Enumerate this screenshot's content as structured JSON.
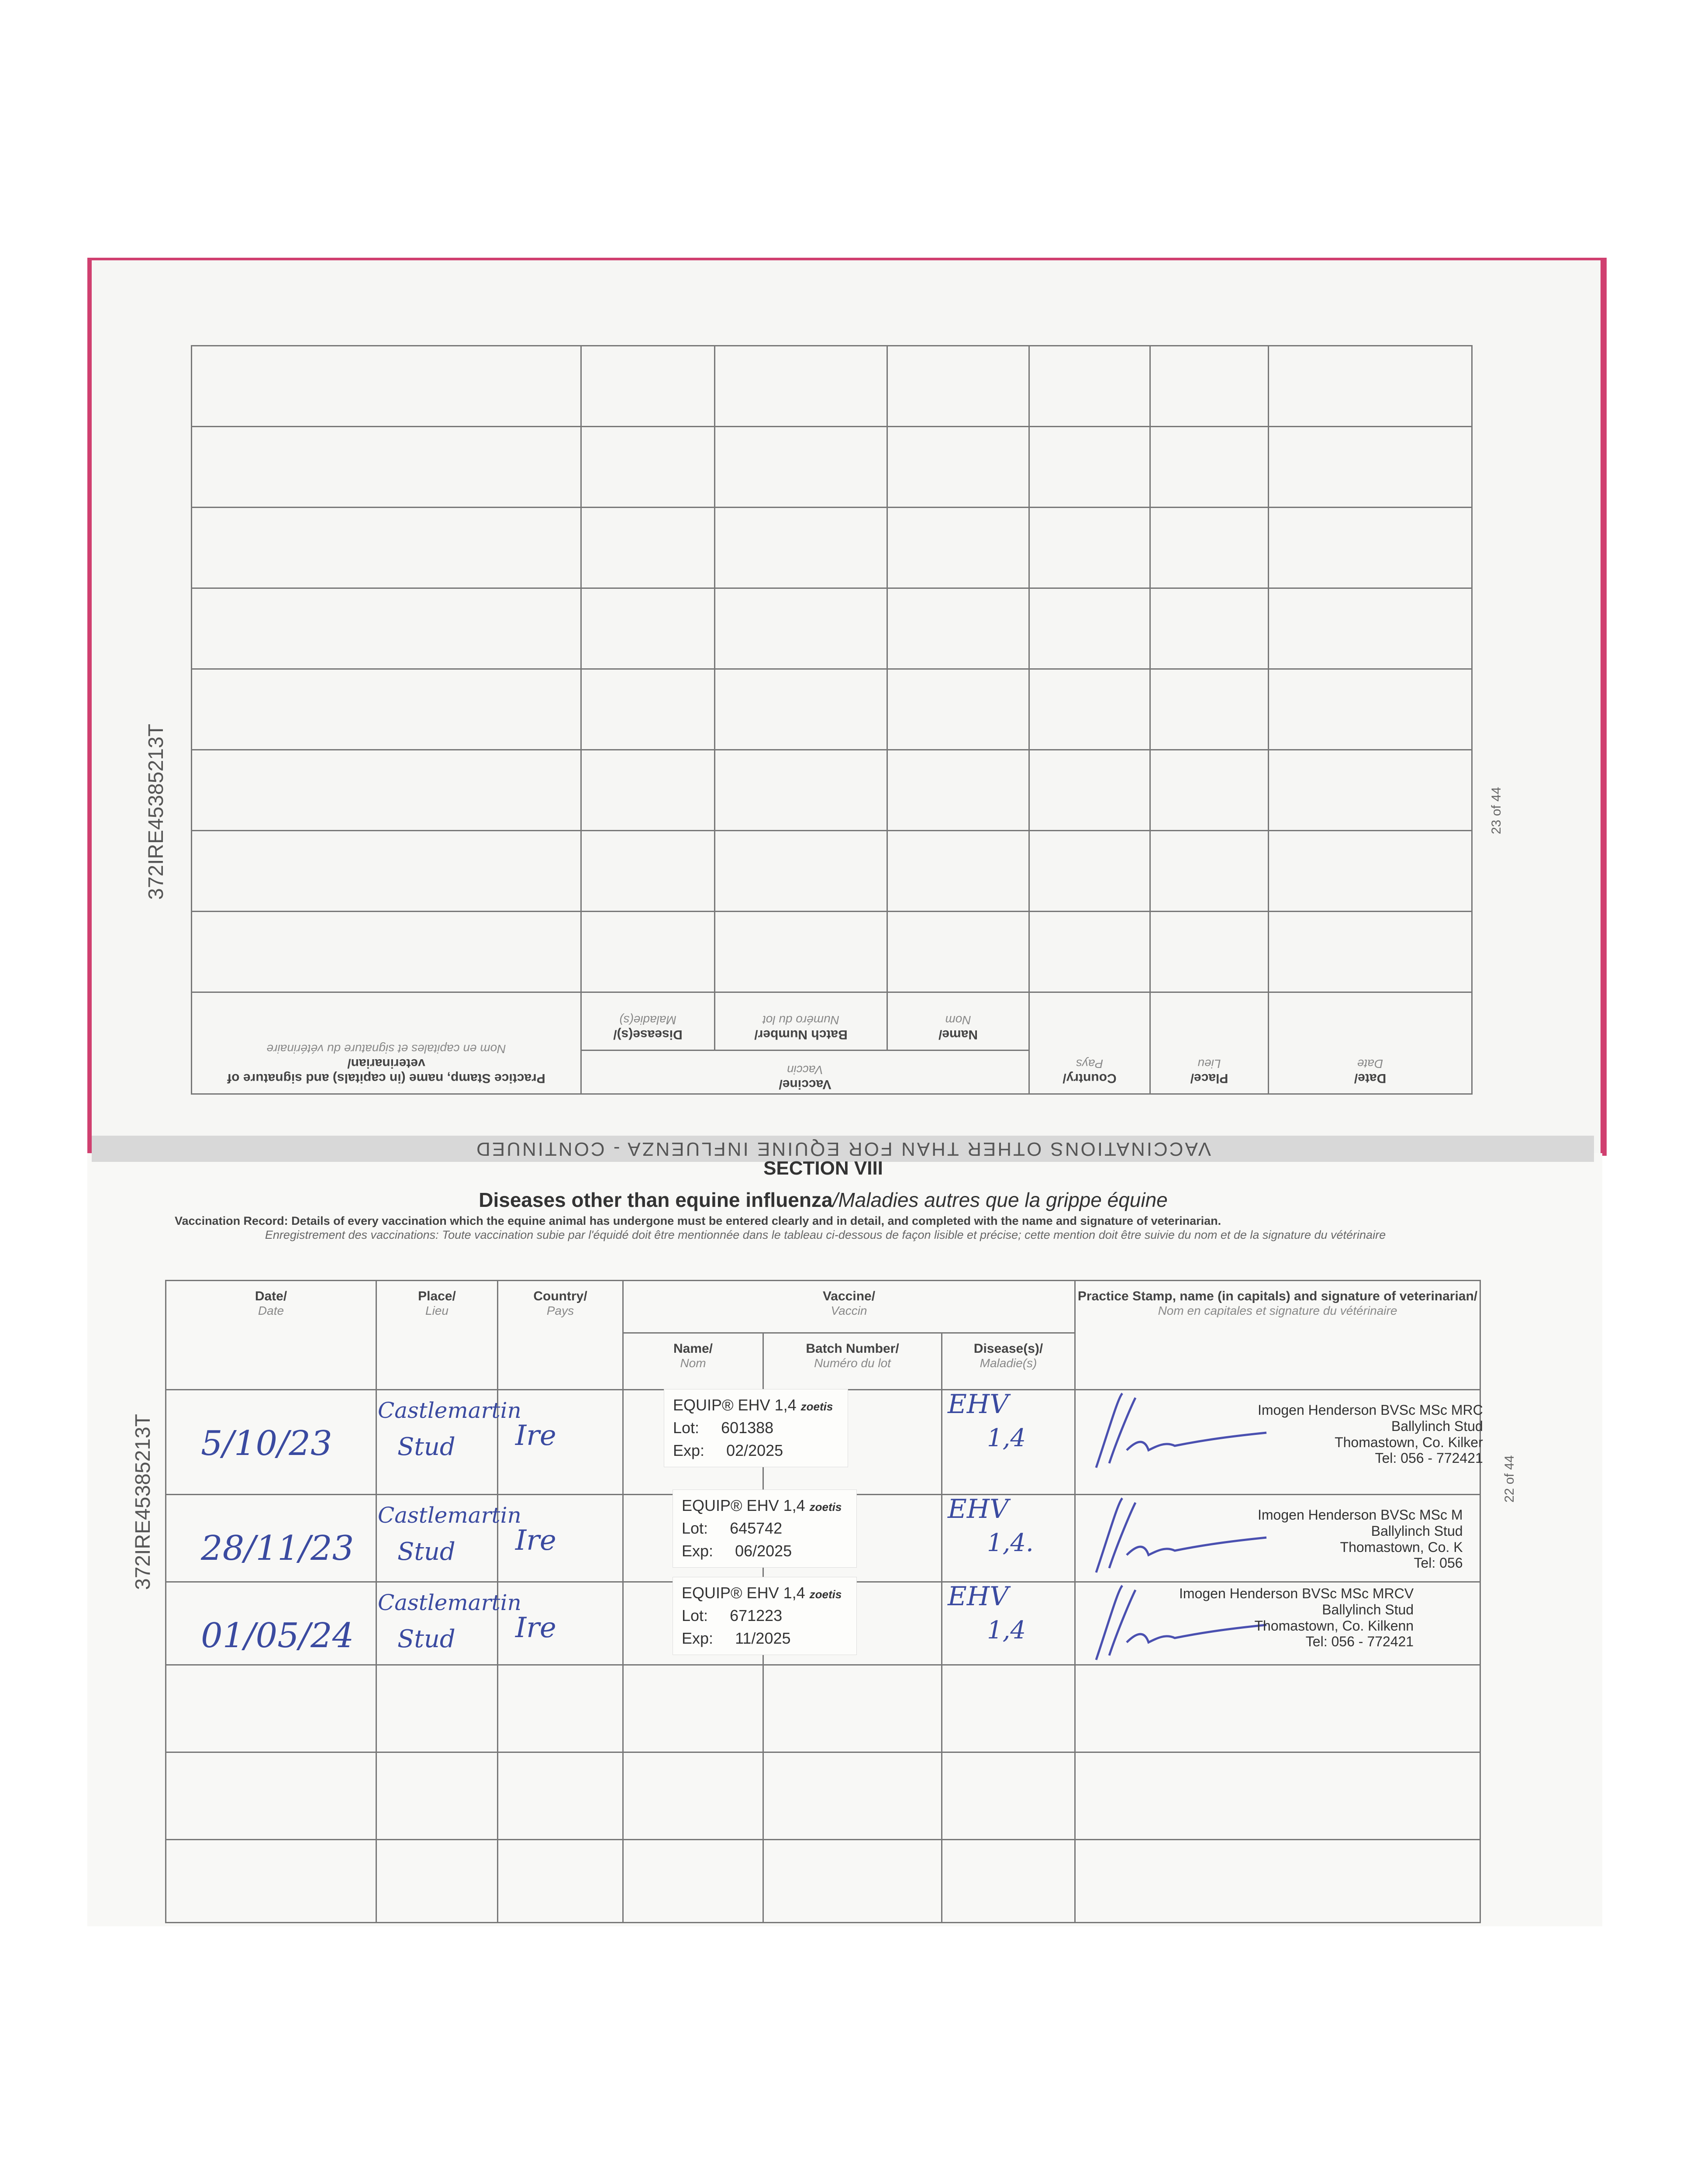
{
  "passport_id": "372IRE45385213T",
  "upper_page": {
    "page_number": "23 of 44",
    "header_band": "VACCINATIONS OTHER THAN FOR EQUINE INFLUENZA - CONTINUED",
    "columns": {
      "date": "Date/",
      "date_fr": "Date",
      "place": "Place/",
      "place_fr": "Lieu",
      "country": "Country/",
      "country_fr": "Pays",
      "vaccine": "Vaccine/",
      "vaccine_fr": "Vaccin",
      "name": "Name/",
      "name_fr": "Nom",
      "batch": "Batch Number/",
      "batch_fr": "Numéro du lot",
      "disease": "Disease(s)/",
      "disease_fr": "Maladie(s)",
      "practice": "Practice Stamp, name (in capitals) and signature of veterinarian/",
      "practice_fr": "Nom en capitales et signature du vétérinaire"
    }
  },
  "lower_page": {
    "page_number": "22 of 44",
    "section": "SECTION VIII",
    "title": "Diseases other than equine influenza",
    "title_fr": "/Maladies autres que la grippe équine",
    "instructions": "Vaccination Record: Details of every vaccination which the equine animal has undergone must be entered clearly and in detail, and completed with the name and signature of veterinarian.",
    "instructions_fr": "Enregistrement des vaccinations: Toute vaccination subie par l'équidé doit être mentionnée dans le tableau ci-dessous de façon lisible et précise; cette mention doit être suivie du nom et de la signature du vétérinaire",
    "columns": {
      "date": "Date/",
      "date_fr": "Date",
      "place": "Place/",
      "place_fr": "Lieu",
      "country": "Country/",
      "country_fr": "Pays",
      "vaccine": "Vaccine/",
      "vaccine_fr": "Vaccin",
      "name": "Name/",
      "name_fr": "Nom",
      "batch": "Batch Number/",
      "batch_fr": "Numéro du lot",
      "disease": "Disease(s)/",
      "disease_fr": "Maladie(s)",
      "practice": "Practice Stamp, name (in capitals) and signature of veterinarian/",
      "practice_fr": "Nom en capitales et signature du vétérinaire"
    },
    "rows": [
      {
        "date": "5/10/23",
        "place_1": "Castlemartin",
        "place_2": "Stud",
        "country": "Ire",
        "label_name": "EQUIP® EHV 1,4",
        "label_brand": "zoetis",
        "lot_label": "Lot:",
        "lot": "601388",
        "exp_label": "Exp:",
        "exp": "02/2025",
        "disease_1": "EHV",
        "disease_2": "1,4",
        "stamp": [
          "Imogen Henderson BVSc MSc MRC",
          "Ballylinch Stud",
          "Thomastown, Co. Kilker",
          "Tel: 056 - 772421"
        ]
      },
      {
        "date": "28/11/23",
        "place_1": "Castlemartin",
        "place_2": "Stud",
        "country": "Ire",
        "label_name": "EQUIP® EHV 1,4",
        "label_brand": "zoetis",
        "lot_label": "Lot:",
        "lot": "645742",
        "exp_label": "Exp:",
        "exp": "06/2025",
        "disease_1": "EHV",
        "disease_2": "1,4.",
        "stamp": [
          "Imogen Henderson BVSc MSc M",
          "Ballylinch Stud",
          "Thomastown, Co. K",
          "Tel: 056"
        ]
      },
      {
        "date": "01/05/24",
        "place_1": "Castlemartin",
        "place_2": "Stud",
        "country": "Ire",
        "label_name": "EQUIP® EHV 1,4",
        "label_brand": "zoetis",
        "lot_label": "Lot:",
        "lot": "671223",
        "exp_label": "Exp:",
        "exp": "11/2025",
        "disease_1": "EHV",
        "disease_2": "1,4",
        "stamp": [
          "Imogen Henderson BVSc MSc MRCV",
          "Ballylinch Stud",
          "Thomastown, Co. Kilkenn",
          "Tel: 056 - 772421"
        ]
      }
    ]
  },
  "colors": {
    "page_edge": "#d04070",
    "ink": "#3a4aa0"
  }
}
